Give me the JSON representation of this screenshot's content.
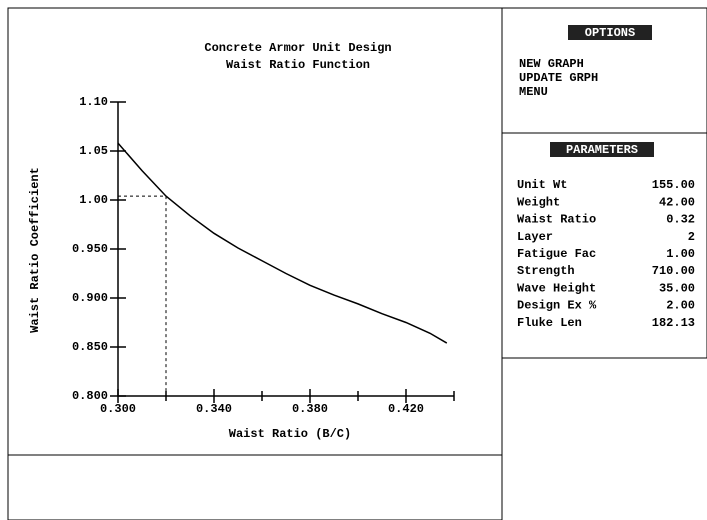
{
  "chart_data": {
    "type": "line",
    "title": "Concrete Armor Unit Design",
    "subtitle": "Waist Ratio Function",
    "x_label": "Waist Ratio (B/C)",
    "y_label": "Waist Ratio Coefficient",
    "xlim": [
      0.3,
      0.44
    ],
    "ylim": [
      0.8,
      1.1
    ],
    "xticks": [
      {
        "value": 0.3,
        "label": "0.300"
      },
      {
        "value": 0.34,
        "label": "0.340"
      },
      {
        "value": 0.38,
        "label": "0.380"
      },
      {
        "value": 0.42,
        "label": "0.420"
      }
    ],
    "xminor": [
      0.32,
      0.36,
      0.4,
      0.44
    ],
    "yticks": [
      {
        "value": 0.8,
        "label": "0.800"
      },
      {
        "value": 0.85,
        "label": "0.850"
      },
      {
        "value": 0.9,
        "label": "0.900"
      },
      {
        "value": 0.95,
        "label": "0.950"
      },
      {
        "value": 1.0,
        "label": "1.00"
      },
      {
        "value": 1.05,
        "label": "1.05"
      },
      {
        "value": 1.1,
        "label": "1.10"
      }
    ],
    "x": [
      0.3,
      0.31,
      0.32,
      0.33,
      0.34,
      0.35,
      0.36,
      0.37,
      0.38,
      0.39,
      0.4,
      0.41,
      0.42,
      0.43,
      0.437
    ],
    "series": [
      {
        "color": "#000000",
        "values": [
          1.058,
          1.03,
          1.004,
          0.984,
          0.966,
          0.951,
          0.938,
          0.925,
          0.913,
          0.903,
          0.894,
          0.884,
          0.875,
          0.864,
          0.854
        ]
      }
    ],
    "marker": {
      "x": 0.32,
      "y": 1.004
    }
  },
  "options": {
    "title": "OPTIONS",
    "items": [
      "NEW GRAPH",
      "UPDATE GRPH",
      "MENU"
    ]
  },
  "parameters": {
    "title": "PARAMETERS",
    "rows": [
      [
        "Unit Wt",
        "155.00"
      ],
      [
        "Weight",
        "42.00"
      ],
      [
        "Waist Ratio",
        "0.32"
      ],
      [
        "Layer",
        "2"
      ],
      [
        "Fatigue Fac",
        "1.00"
      ],
      [
        "Strength",
        "710.00"
      ],
      [
        "Wave Height",
        "35.00"
      ],
      [
        "Design Ex %",
        "2.00"
      ],
      [
        "Fluke Len",
        "182.13"
      ]
    ]
  }
}
